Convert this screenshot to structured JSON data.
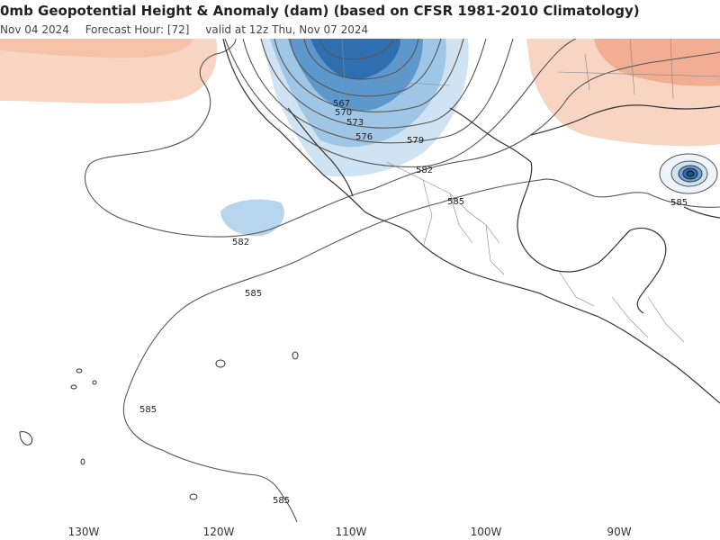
{
  "header": {
    "title": "0mb Geopotential Height & Anomaly (dam) (based on CFSR 1981-2010 Climatology)",
    "init": "Nov 04 2024",
    "forecast_hour": "Forecast Hour: [72]",
    "valid": "valid at 12z Thu, Nov 07 2024"
  },
  "map": {
    "contour_labels": [
      "567",
      "570",
      "573",
      "576",
      "579",
      "582",
      "585",
      "582",
      "585",
      "585",
      "585",
      "585"
    ],
    "colors": {
      "negative_anomaly_strong": "#2f6fb0",
      "negative_anomaly_mid": "#6ea5d6",
      "negative_anomaly_light": "#a9cde8",
      "positive_anomaly_light": "#f8d5c2",
      "positive_anomaly_mid": "#f2ae92",
      "contour_line": "#555555",
      "coastline": "#333333",
      "border_line": "#777777"
    }
  },
  "x_axis": {
    "tick_labels": [
      "130W",
      "120W",
      "110W",
      "100W",
      "90W"
    ]
  }
}
